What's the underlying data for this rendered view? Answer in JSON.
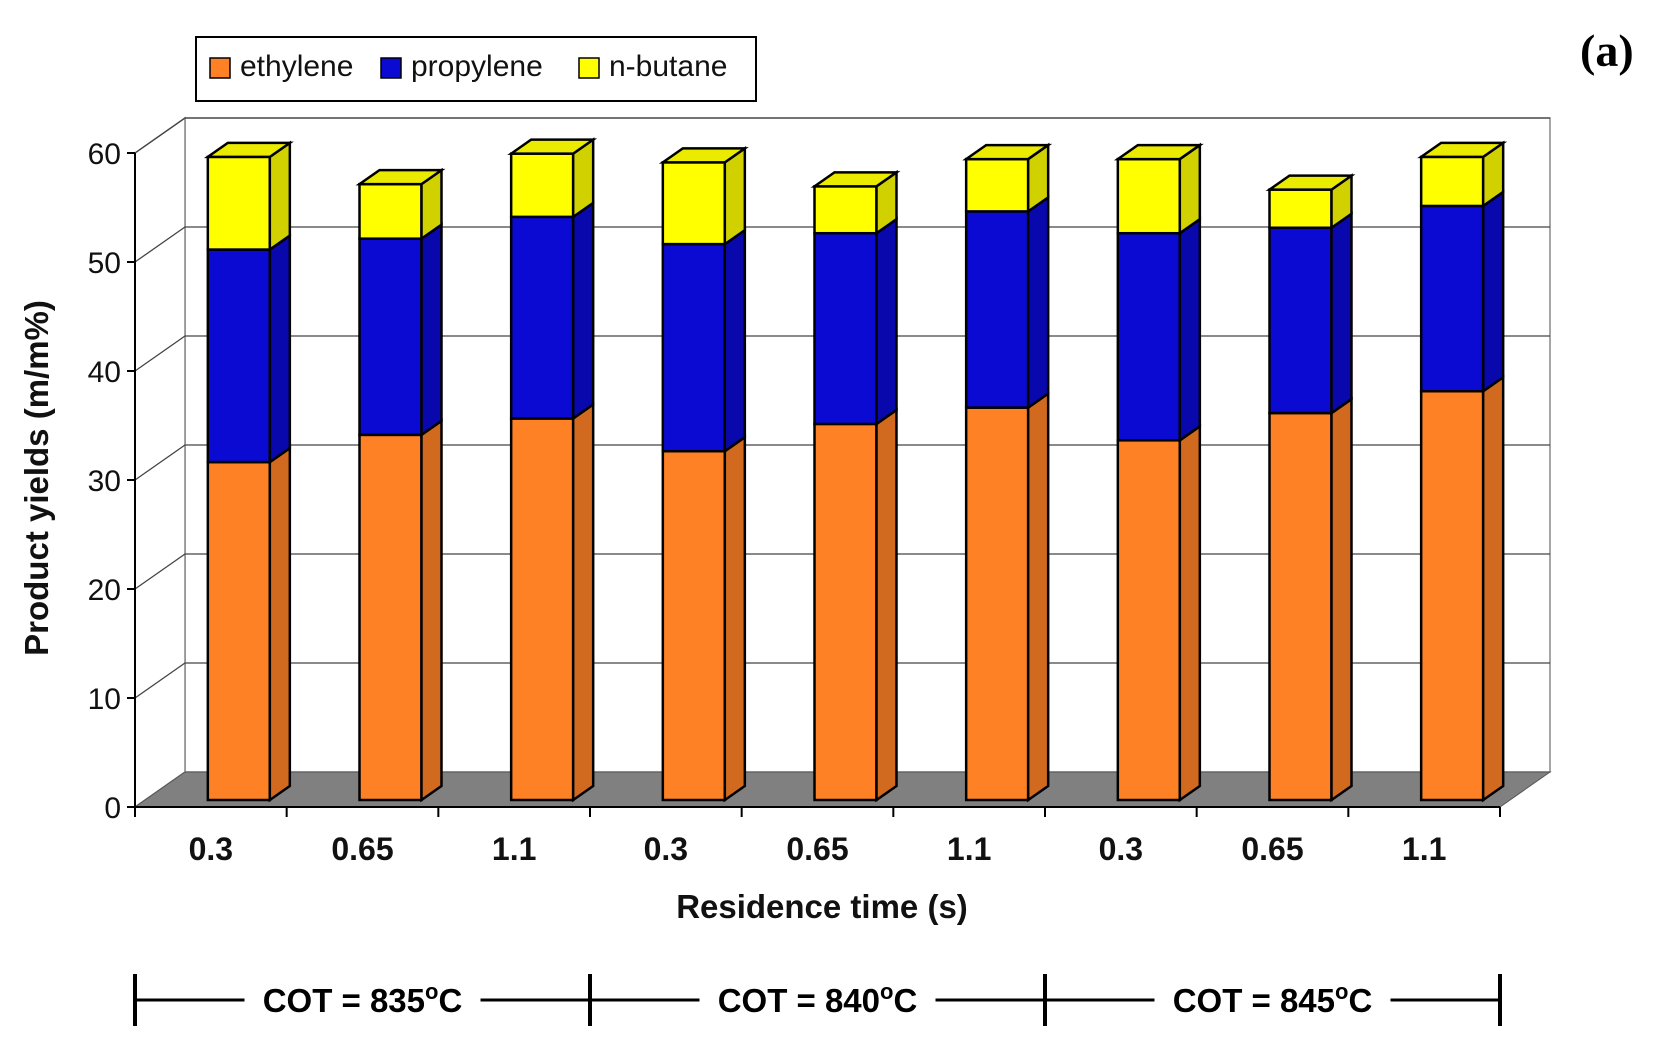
{
  "panel_label": "(a)",
  "colors": {
    "ethylene": "#ff8126",
    "propylene": "#0a0ad2",
    "n-butane": "#ffff00",
    "floor": "#808080"
  },
  "chart_data": {
    "type": "bar",
    "stacked": true,
    "xlabel": "Residence time (s)",
    "ylabel": "Product yields (m/m%)",
    "ylim": [
      0,
      60
    ],
    "yticks": [
      0,
      10,
      20,
      30,
      40,
      50,
      60
    ],
    "categories": [
      "0.3",
      "0.65",
      "1.1",
      "0.3",
      "0.65",
      "1.1",
      "0.3",
      "0.65",
      "1.1"
    ],
    "series": [
      {
        "name": "ethylene",
        "values": [
          31.0,
          33.5,
          35.0,
          32.0,
          34.5,
          36.0,
          33.0,
          35.5,
          37.5
        ]
      },
      {
        "name": "propylene",
        "values": [
          19.5,
          18.0,
          18.5,
          19.0,
          17.5,
          18.0,
          19.0,
          17.0,
          17.0
        ]
      },
      {
        "name": "n-butane",
        "values": [
          8.5,
          5.0,
          5.8,
          7.5,
          4.3,
          4.8,
          6.8,
          3.5,
          4.5
        ]
      }
    ],
    "legend_position": "top-left",
    "grid": true,
    "groups": [
      {
        "label": "COT = 835",
        "unit": "C",
        "degree": "o",
        "start": 0,
        "end": 2
      },
      {
        "label": "COT = 840",
        "unit": "C",
        "degree": "o",
        "start": 3,
        "end": 5
      },
      {
        "label": "COT = 845",
        "unit": "C",
        "degree": "o",
        "start": 6,
        "end": 8
      }
    ]
  }
}
